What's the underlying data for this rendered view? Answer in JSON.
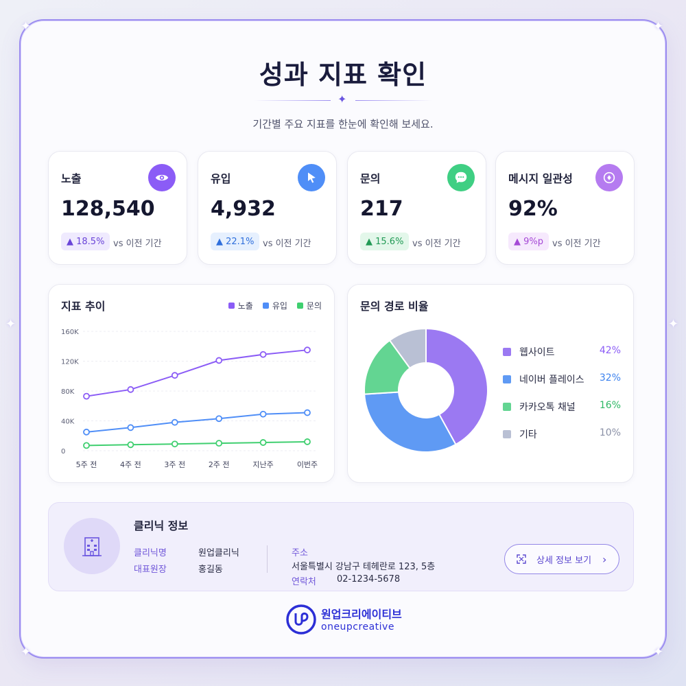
{
  "header": {
    "title": "성과 지표 확인",
    "subtitle": "기간별 주요 지표를 한눈에 확인해 보세요."
  },
  "kpis": [
    {
      "label": "노출",
      "value": "128,540",
      "change": "▲ 18.5%",
      "vs": "vs 이전 기간",
      "icon": "eye-icon",
      "color": "#8b5cf6"
    },
    {
      "label": "유입",
      "value": "4,932",
      "change": "▲ 22.1%",
      "vs": "vs 이전 기간",
      "icon": "cursor-icon",
      "color": "#4f8ef7"
    },
    {
      "label": "문의",
      "value": "217",
      "change": "▲ 15.6%",
      "vs": "vs 이전 기간",
      "icon": "chat-icon",
      "color": "#3fcf83"
    },
    {
      "label": "메시지 일관성",
      "value": "92%",
      "change": "▲ 9%p",
      "vs": "vs 이전 기간",
      "icon": "target-icon",
      "color": "#b57bf0"
    }
  ],
  "trend": {
    "title": "지표 추이",
    "legend": [
      "노출",
      "유입",
      "문의"
    ]
  },
  "ratio": {
    "title": "문의 경로 비율",
    "items": [
      {
        "name": "웹사이트",
        "pct": "42%",
        "color": "#9b79f2"
      },
      {
        "name": "네이버 플레이스",
        "pct": "32%",
        "color": "#5f9af4"
      },
      {
        "name": "카카오톡 채널",
        "pct": "16%",
        "color": "#63d592"
      },
      {
        "name": "기타",
        "pct": "10%",
        "color": "#b9c0d4"
      }
    ]
  },
  "chart_data": [
    {
      "type": "line",
      "title": "지표 추이",
      "categories": [
        "5주 전",
        "4주 전",
        "3주 전",
        "2주 전",
        "지난주",
        "이번주"
      ],
      "yticks": [
        "0",
        "40K",
        "80K",
        "120K",
        "160K"
      ],
      "ylim": [
        0,
        160000
      ],
      "grid": true,
      "legend_position": "top-right",
      "series": [
        {
          "name": "노출",
          "color": "#8b5cf6",
          "values": [
            73000,
            82000,
            101000,
            121000,
            129000,
            135000
          ]
        },
        {
          "name": "유입",
          "color": "#4f8ef7",
          "values": [
            25000,
            31000,
            38000,
            43000,
            49000,
            51000
          ]
        },
        {
          "name": "문의",
          "color": "#3fcf6f",
          "values": [
            7000,
            8000,
            9000,
            10000,
            11000,
            12000
          ]
        }
      ]
    },
    {
      "type": "pie",
      "title": "문의 경로 비율",
      "categories": [
        "웹사이트",
        "네이버 플레이스",
        "카카오톡 채널",
        "기타"
      ],
      "values": [
        42,
        32,
        16,
        10
      ],
      "colors": [
        "#9b79f2",
        "#5f9af4",
        "#63d592",
        "#b9c0d4"
      ],
      "legend_position": "right"
    }
  ],
  "clinic": {
    "title": "클리닉 정보",
    "name_label": "클리닉명",
    "name_value": "원업클리닉",
    "director_label": "대표원장",
    "director_value": "홍길동",
    "address_label": "주소",
    "address_value": "서울특별시 강남구 테헤란로 123, 5층",
    "phone_label": "연락처",
    "phone_value": "02-1234-5678",
    "detail_button": "상세 정보 보기"
  },
  "brand": {
    "korean": "원업크리에이티브",
    "english": "oneupcreative"
  }
}
